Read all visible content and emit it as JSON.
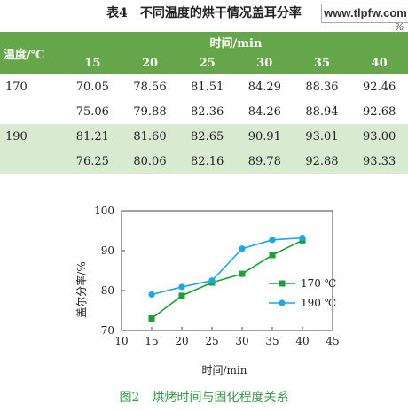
{
  "table": {
    "title": "表4　不同温度的烘干情况盖耳分率",
    "unit": "%",
    "header_temp": "温度/℃",
    "header_time": "时间/min",
    "times": [
      "15",
      "20",
      "25",
      "30",
      "35",
      "40"
    ],
    "rows": [
      {
        "temp": "170",
        "values": [
          "70.05",
          "78.56",
          "81.51",
          "84.29",
          "88.36",
          "92.46"
        ]
      },
      {
        "temp": "",
        "values": [
          "75.06",
          "79.88",
          "82.36",
          "84.26",
          "88.94",
          "92.68"
        ]
      },
      {
        "temp": "190",
        "values": [
          "81.21",
          "81.60",
          "82.65",
          "90.91",
          "93.01",
          "93.00"
        ]
      },
      {
        "temp": "",
        "values": [
          "76.25",
          "80.06",
          "82.16",
          "89.78",
          "92.88",
          "93.33"
        ]
      }
    ]
  },
  "watermark": "www.tlpfw.com",
  "chart_data": {
    "type": "line",
    "xlabel": "时间/min",
    "ylabel": "盖尔分率/%",
    "xlim": [
      10,
      45
    ],
    "ylim": [
      70,
      100
    ],
    "xticks": [
      "10",
      "15",
      "20",
      "25",
      "30",
      "35",
      "40",
      "45"
    ],
    "yticks": [
      "70",
      "80",
      "90",
      "100"
    ],
    "x": [
      15,
      20,
      25,
      30,
      35,
      40
    ],
    "series": [
      {
        "name": "170 ℃",
        "marker": "square",
        "color": "#1f9e3a",
        "values": [
          73.0,
          78.7,
          82.0,
          84.2,
          88.9,
          92.6
        ]
      },
      {
        "name": "190 ℃",
        "marker": "circle",
        "color": "#1aa7e8",
        "values": [
          79.0,
          80.9,
          82.5,
          90.5,
          92.7,
          93.2
        ]
      }
    ],
    "legend_position": "right"
  },
  "figure_caption": "图2　烘烤时间与固化程度关系"
}
